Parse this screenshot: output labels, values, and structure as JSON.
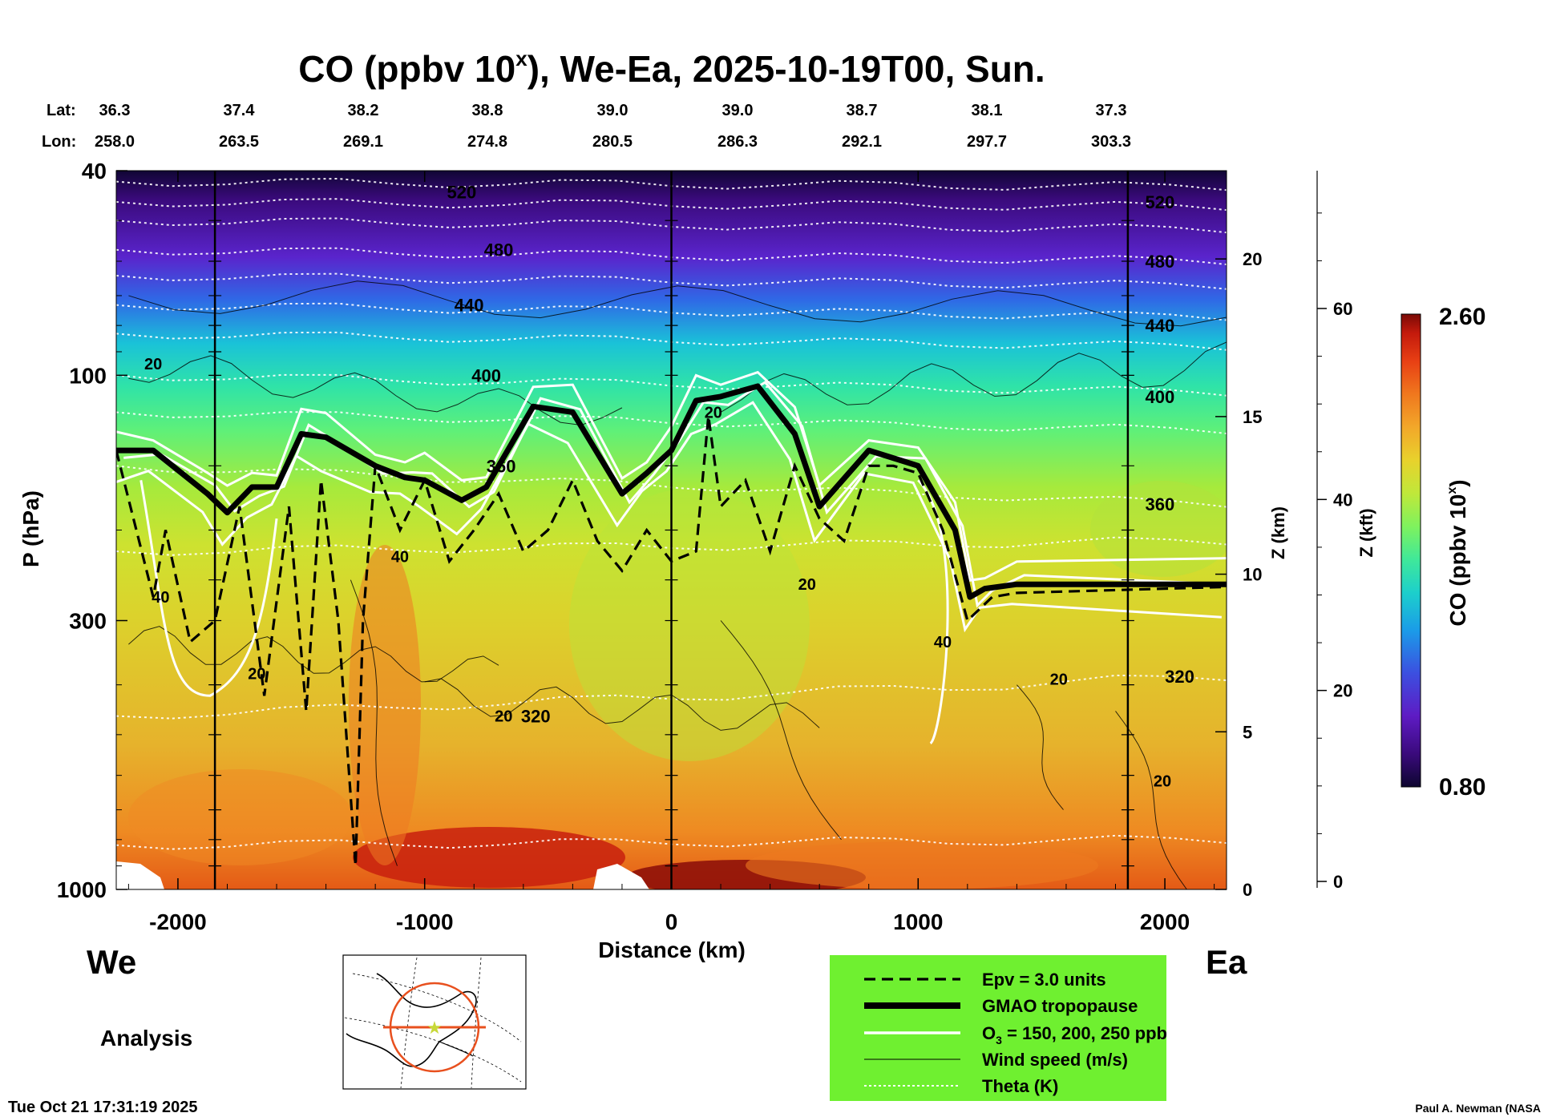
{
  "chart_data": {
    "type": "heatmap",
    "title": "CO (ppbv 10",
    "title_sup": "x",
    "title_rest": "), We-Ea, 2025-10-19T00, Sun.",
    "xlabel": "Distance (km)",
    "ylabel": "P (hPa)",
    "z_km_label": "Z (km)",
    "z_kft_label": "Z (kft)",
    "colorbar_label_main": "CO (ppbv 10",
    "colorbar_label_sup": "x",
    "colorbar_label_end": ")",
    "xlim": [
      -2250,
      2250
    ],
    "ylim": [
      1000,
      40
    ],
    "x_ticks": [
      "-2000",
      "-1000",
      "0",
      "1000",
      "2000"
    ],
    "x_tick_values": [
      -2000,
      -1000,
      0,
      1000,
      2000
    ],
    "y_ticks": [
      "40",
      "100",
      "300",
      "1000"
    ],
    "y_tick_values": [
      40,
      100,
      300,
      1000
    ],
    "zkm_ticks": [
      "0",
      "5",
      "10",
      "15",
      "20"
    ],
    "zkm_values": [
      0,
      5,
      10,
      15,
      20
    ],
    "zkft_ticks": [
      "0",
      "20",
      "40",
      "60"
    ],
    "zkft_values": [
      0,
      20,
      40,
      60
    ],
    "lat_label": "Lat:",
    "lon_label": "Lon:",
    "lats": [
      "36.3",
      "37.4",
      "38.2",
      "38.8",
      "39.0",
      "39.0",
      "38.7",
      "38.1",
      "37.3"
    ],
    "lons": [
      "258.0",
      "263.5",
      "269.1",
      "274.8",
      "280.5",
      "286.3",
      "292.1",
      "297.7",
      "303.3"
    ],
    "vertical_lines_km": [
      -1850,
      0,
      1850
    ],
    "colorbar_min": "0.80",
    "colorbar_max": "2.60",
    "colors": [
      "#0e0630",
      "#3a0a7c",
      "#5e1bc4",
      "#3c4fe0",
      "#1b9be8",
      "#1ccfcc",
      "#3fe89a",
      "#7ef25e",
      "#bfe83a",
      "#e8d22c",
      "#f2a82a",
      "#f0781e",
      "#e84014",
      "#c41a0c",
      "#7a0a06"
    ],
    "theta_labels": [
      {
        "v": "520",
        "x": -850,
        "p": 44
      },
      {
        "v": "480",
        "x": -700,
        "p": 57
      },
      {
        "v": "440",
        "x": -820,
        "p": 73
      },
      {
        "v": "400",
        "x": -750,
        "p": 100
      },
      {
        "v": "360",
        "x": -690,
        "p": 150
      },
      {
        "v": "320",
        "x": -550,
        "p": 460
      },
      {
        "v": "520",
        "x": 1980,
        "p": 46
      },
      {
        "v": "480",
        "x": 1980,
        "p": 60
      },
      {
        "v": "440",
        "x": 1980,
        "p": 80
      },
      {
        "v": "400",
        "x": 1980,
        "p": 110
      },
      {
        "v": "360",
        "x": 1980,
        "p": 178
      },
      {
        "v": "320",
        "x": 2060,
        "p": 385
      }
    ],
    "wind_labels": [
      {
        "v": "20",
        "x": -2100,
        "p": 95
      },
      {
        "v": "40",
        "x": -2070,
        "p": 270
      },
      {
        "v": "20",
        "x": -1680,
        "p": 380
      },
      {
        "v": "40",
        "x": -1100,
        "p": 225
      },
      {
        "v": "20",
        "x": -680,
        "p": 460
      },
      {
        "v": "20",
        "x": 170,
        "p": 118
      },
      {
        "v": "20",
        "x": 550,
        "p": 255
      },
      {
        "v": "40",
        "x": 1100,
        "p": 330
      },
      {
        "v": "20",
        "x": 1570,
        "p": 390
      },
      {
        "v": "20",
        "x": 1990,
        "p": 615
      }
    ],
    "tropopause_km_x": [
      -2250,
      -2100,
      -1880,
      -1800,
      -1700,
      -1600,
      -1500,
      -1400,
      -1200,
      -1080,
      -1000,
      -850,
      -750,
      -560,
      -400,
      -200,
      -100,
      0,
      100,
      200,
      350,
      500,
      600,
      800,
      1000,
      1150,
      1210,
      1270,
      1400,
      2250
    ],
    "tropopause_p": [
      140,
      140,
      170,
      185,
      165,
      165,
      130,
      132,
      150,
      158,
      160,
      175,
      165,
      115,
      118,
      170,
      155,
      140,
      112,
      110,
      105,
      130,
      180,
      140,
      150,
      200,
      270,
      260,
      255,
      255
    ],
    "legend": {
      "epv": "Epv = 3.0 units",
      "tropopause": "GMAO tropopause",
      "ozone_pre": "O",
      "ozone_sub": "3",
      "ozone_post": " = 150, 200, 250 ppb",
      "wind": "Wind speed (m/s)",
      "theta": "Theta (K)"
    },
    "west_label": "We",
    "east_label": "Ea",
    "analysis_label": "Analysis"
  },
  "footer": {
    "timestamp": "Tue Oct 21 17:31:19 2025",
    "credit": "Paul A. Newman (NASA"
  }
}
